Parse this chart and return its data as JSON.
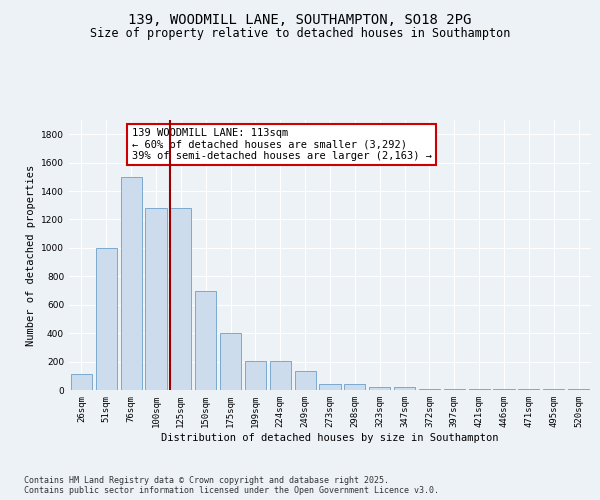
{
  "title_line1": "139, WOODMILL LANE, SOUTHAMPTON, SO18 2PG",
  "title_line2": "Size of property relative to detached houses in Southampton",
  "xlabel": "Distribution of detached houses by size in Southampton",
  "ylabel": "Number of detached properties",
  "categories": [
    "26sqm",
    "51sqm",
    "76sqm",
    "100sqm",
    "125sqm",
    "150sqm",
    "175sqm",
    "199sqm",
    "224sqm",
    "249sqm",
    "273sqm",
    "298sqm",
    "323sqm",
    "347sqm",
    "372sqm",
    "397sqm",
    "421sqm",
    "446sqm",
    "471sqm",
    "495sqm",
    "520sqm"
  ],
  "values": [
    110,
    1000,
    1500,
    1280,
    1280,
    700,
    400,
    205,
    205,
    135,
    40,
    40,
    20,
    20,
    10,
    10,
    10,
    5,
    5,
    5,
    10
  ],
  "bar_color": "#ccdcec",
  "bar_edge_color": "#6a9fca",
  "vline_pos": 3.55,
  "vline_color": "#990000",
  "annotation_text": "139 WOODMILL LANE: 113sqm\n← 60% of detached houses are smaller (3,292)\n39% of semi-detached houses are larger (2,163) →",
  "annotation_box_color": "#ffffff",
  "annotation_edge_color": "#cc0000",
  "ylim": [
    0,
    1900
  ],
  "yticks": [
    0,
    200,
    400,
    600,
    800,
    1000,
    1200,
    1400,
    1600,
    1800
  ],
  "background_color": "#edf2f7",
  "grid_color": "#ffffff",
  "footer_text": "Contains HM Land Registry data © Crown copyright and database right 2025.\nContains public sector information licensed under the Open Government Licence v3.0.",
  "title_fontsize": 10,
  "subtitle_fontsize": 8.5,
  "axis_label_fontsize": 7.5,
  "tick_fontsize": 6.5,
  "annotation_fontsize": 7.5,
  "footer_fontsize": 6.0
}
